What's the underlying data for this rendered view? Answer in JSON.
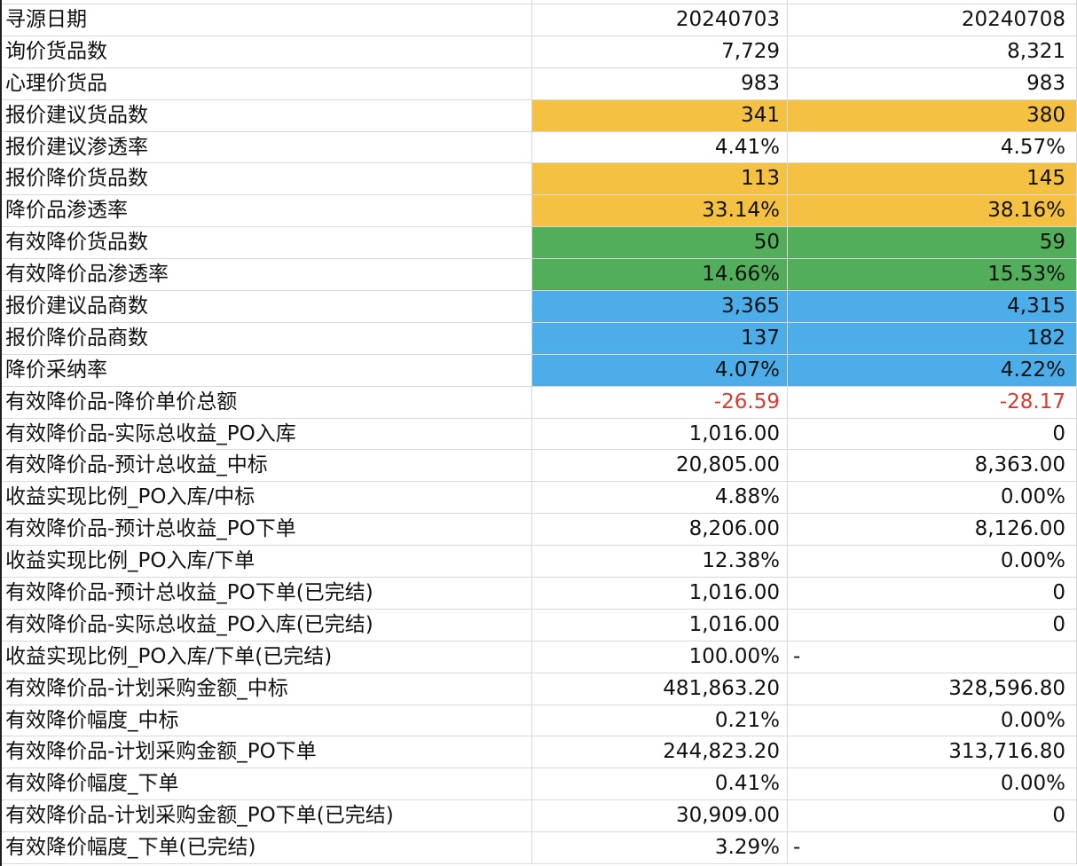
{
  "sheet": {
    "rows": [
      {
        "label": "寻源日期",
        "v1": "20240703",
        "v2": "20240708",
        "style": ""
      },
      {
        "label": "询价货品数",
        "v1": "7,729",
        "v2": "8,321",
        "style": ""
      },
      {
        "label": "心理价货品",
        "v1": "983",
        "v2": "983",
        "style": ""
      },
      {
        "label": "报价建议货品数",
        "v1": "341",
        "v2": "380",
        "style": "yellow"
      },
      {
        "label": "报价建议渗透率",
        "v1": "4.41%",
        "v2": "4.57%",
        "style": ""
      },
      {
        "label": "报价降价货品数",
        "v1": "113",
        "v2": "145",
        "style": "yellow"
      },
      {
        "label": "降价品渗透率",
        "v1": "33.14%",
        "v2": "38.16%",
        "style": "yellow"
      },
      {
        "label": "有效降价货品数",
        "v1": "50",
        "v2": "59",
        "style": "green"
      },
      {
        "label": "有效降价品渗透率",
        "v1": "14.66%",
        "v2": "15.53%",
        "style": "green"
      },
      {
        "label": "报价建议品商数",
        "v1": "3,365",
        "v2": "4,315",
        "style": "blue"
      },
      {
        "label": "报价降价品商数",
        "v1": "137",
        "v2": "182",
        "style": "blue"
      },
      {
        "label": "降价采纳率",
        "v1": "4.07%",
        "v2": "4.22%",
        "style": "blue"
      },
      {
        "label": "有效降价品-降价单价总额",
        "v1": "-26.59",
        "v2": "-28.17",
        "style": "negative"
      },
      {
        "label": "有效降价品-实际总收益_PO入库",
        "v1": "1,016.00",
        "v2": "0",
        "style": ""
      },
      {
        "label": "有效降价品-预计总收益_中标",
        "v1": "20,805.00",
        "v2": "8,363.00",
        "style": ""
      },
      {
        "label": "收益实现比例_PO入库/中标",
        "v1": "4.88%",
        "v2": "0.00%",
        "style": ""
      },
      {
        "label": "有效降价品-预计总收益_PO下单",
        "v1": "8,206.00",
        "v2": "8,126.00",
        "style": ""
      },
      {
        "label": "收益实现比例_PO入库/下单",
        "v1": "12.38%",
        "v2": "0.00%",
        "style": ""
      },
      {
        "label": "有效降价品-预计总收益_PO下单(已完结)",
        "v1": "1,016.00",
        "v2": "0",
        "style": ""
      },
      {
        "label": "有效降价品-实际总收益_PO入库(已完结)",
        "v1": "1,016.00",
        "v2": "0",
        "style": ""
      },
      {
        "label": "收益实现比例_PO入库/下单(已完结)",
        "v1": "100.00%",
        "v2": "-",
        "style": "dash"
      },
      {
        "label": "有效降价品-计划采购金额_中标",
        "v1": "481,863.20",
        "v2": "328,596.80",
        "style": ""
      },
      {
        "label": "有效降价幅度_中标",
        "v1": "0.21%",
        "v2": "0.00%",
        "style": ""
      },
      {
        "label": "有效降价品-计划采购金额_PO下单",
        "v1": "244,823.20",
        "v2": "313,716.80",
        "style": ""
      },
      {
        "label": "有效降价幅度_下单",
        "v1": "0.41%",
        "v2": "0.00%",
        "style": ""
      },
      {
        "label": "有效降价品-计划采购金额_PO下单(已完结)",
        "v1": "30,909.00",
        "v2": "0",
        "style": ""
      },
      {
        "label": "有效降价幅度_下单(已完结)",
        "v1": "3.29%",
        "v2": "-",
        "style": "dash"
      }
    ]
  }
}
